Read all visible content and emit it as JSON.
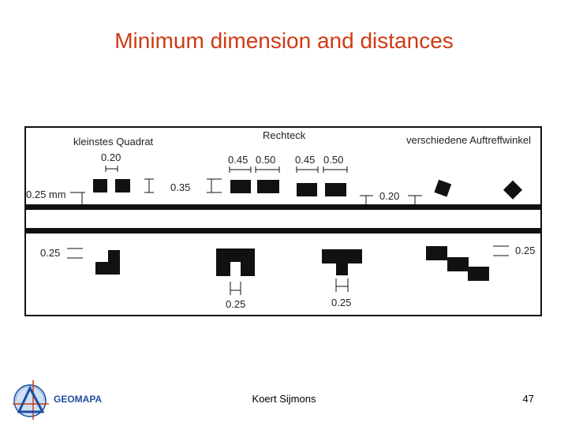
{
  "slide": {
    "title": "Minimum dimension and distances",
    "author": "Koert Sijmons",
    "page_number": "47",
    "logo_text": "GEOMAPA"
  },
  "diagram": {
    "section_labels": [
      "kleinstes Quadrat",
      "Rechteck",
      "verschiedene Auftreffwinkel"
    ],
    "dimensions": {
      "square_gap": "0.20",
      "square_height": "0.35",
      "left_line": "0.25 mm",
      "rect_widths": [
        "0.45",
        "0.50",
        "0.45",
        "0.50"
      ],
      "angle_gap": "0.20",
      "lower_left": "0.25",
      "lower_mid1": "0.25",
      "lower_mid2": "0.25",
      "lower_right": "0.25"
    }
  },
  "colors": {
    "title": "#d03a14",
    "ink": "#111111",
    "logo_blue": "#1f4ea0"
  }
}
